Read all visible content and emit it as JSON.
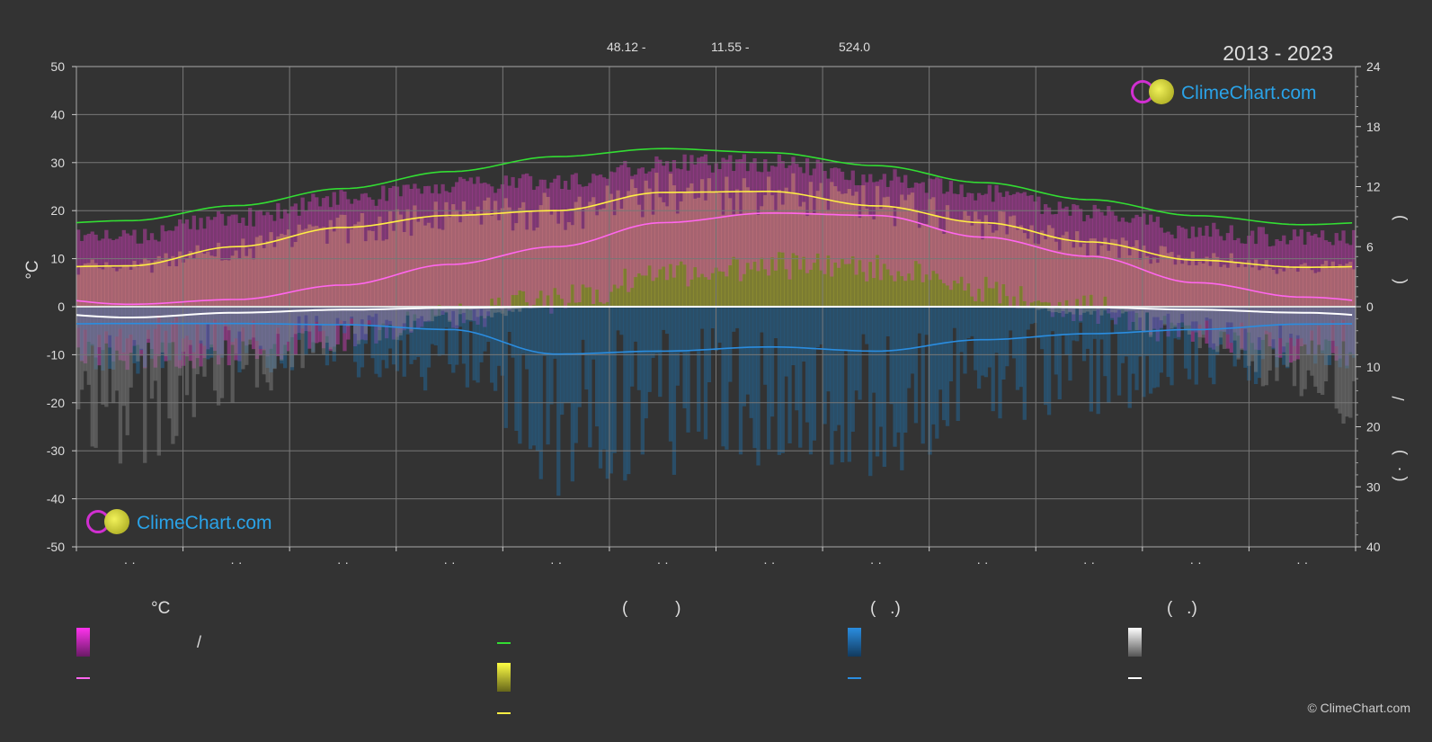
{
  "header": {
    "latitude": "48.12 -",
    "longitude": "11.55 -",
    "elevation": "524.0",
    "years": "2013 - 2023"
  },
  "logo": {
    "text": "ClimeChart.com"
  },
  "copyright": "© ClimeChart.com",
  "legend": {
    "col1_header": "°C",
    "col1_item1": "/",
    "col2_header": "(          )",
    "col3_header": "(   .)",
    "col4_header": "(   .)"
  },
  "colors": {
    "background": "#333333",
    "sunshine_line": "#33dd33",
    "daylight_line": "#ffee44",
    "temp_max_line": "#ffee44",
    "temp_mean_line": "#ff66ee",
    "precip_line": "#2a8de0",
    "snow_line": "#ffffff",
    "temp_band": "#e040c8",
    "sunshine_band": "#b8b830",
    "precip_band": "#1f6ea8",
    "snow_band": "#888888"
  },
  "chart_data": {
    "type": "line",
    "x_months": [
      1,
      2,
      3,
      4,
      5,
      6,
      7,
      8,
      9,
      10,
      11,
      12
    ],
    "x_tick_labels": [
      "·  ·",
      "·  ·",
      "·  ·",
      "·  ·",
      "·  ·",
      "·  ·",
      "·  ·",
      "·  ·",
      "·  ·",
      "·  ·",
      "·  ·",
      "·  ·"
    ],
    "y_left": {
      "label": "°C",
      "ylim": [
        -50,
        50
      ],
      "ticks": [
        50,
        40,
        30,
        20,
        10,
        0,
        -10,
        -20,
        -30,
        -40,
        -50
      ]
    },
    "y_right_top": {
      "ylim": [
        0,
        24
      ],
      "ticks": [
        24,
        18,
        12,
        6,
        0
      ]
    },
    "y_right_bottom": {
      "ylim": [
        0,
        40
      ],
      "ticks": [
        10,
        20,
        30,
        40
      ]
    },
    "right_axis_labels": [
      ")",
      "(",
      "/",
      ")",
      "(   ·"
    ],
    "grid": true,
    "series": [
      {
        "key": "daylight_hours",
        "axis": "hours",
        "values": [
          8.6,
          10.1,
          11.8,
          13.5,
          15.0,
          15.8,
          15.4,
          14.1,
          12.4,
          10.7,
          9.1,
          8.2
        ]
      },
      {
        "key": "sunshine_hours",
        "axis": "hours",
        "values": [
          4.1,
          5.8,
          7.8,
          9.2,
          9.5,
          11.3,
          11.4,
          10.1,
          8.4,
          6.3,
          4.7,
          3.9
        ]
      },
      {
        "key": "temp_max",
        "axis": "temp",
        "values": [
          8.5,
          12.5,
          16.5,
          19.0,
          20.0,
          23.8,
          24.0,
          21.0,
          17.5,
          13.5,
          9.7,
          8.2
        ]
      },
      {
        "key": "temp_mean",
        "axis": "temp",
        "values": [
          0.5,
          1.5,
          4.5,
          8.8,
          12.5,
          17.5,
          19.5,
          19.0,
          14.5,
          10.5,
          5.0,
          2.0
        ]
      },
      {
        "key": "precip_mm",
        "axis": "precip",
        "values": [
          2.8,
          2.8,
          3.0,
          3.8,
          7.9,
          7.4,
          6.7,
          7.4,
          5.5,
          4.5,
          3.8,
          2.9
        ]
      },
      {
        "key": "snow_mm",
        "axis": "precip",
        "values": [
          1.8,
          1.0,
          0.5,
          0.2,
          0.0,
          0.0,
          0.0,
          0.0,
          0.0,
          0.1,
          0.5,
          1.0
        ]
      }
    ]
  }
}
